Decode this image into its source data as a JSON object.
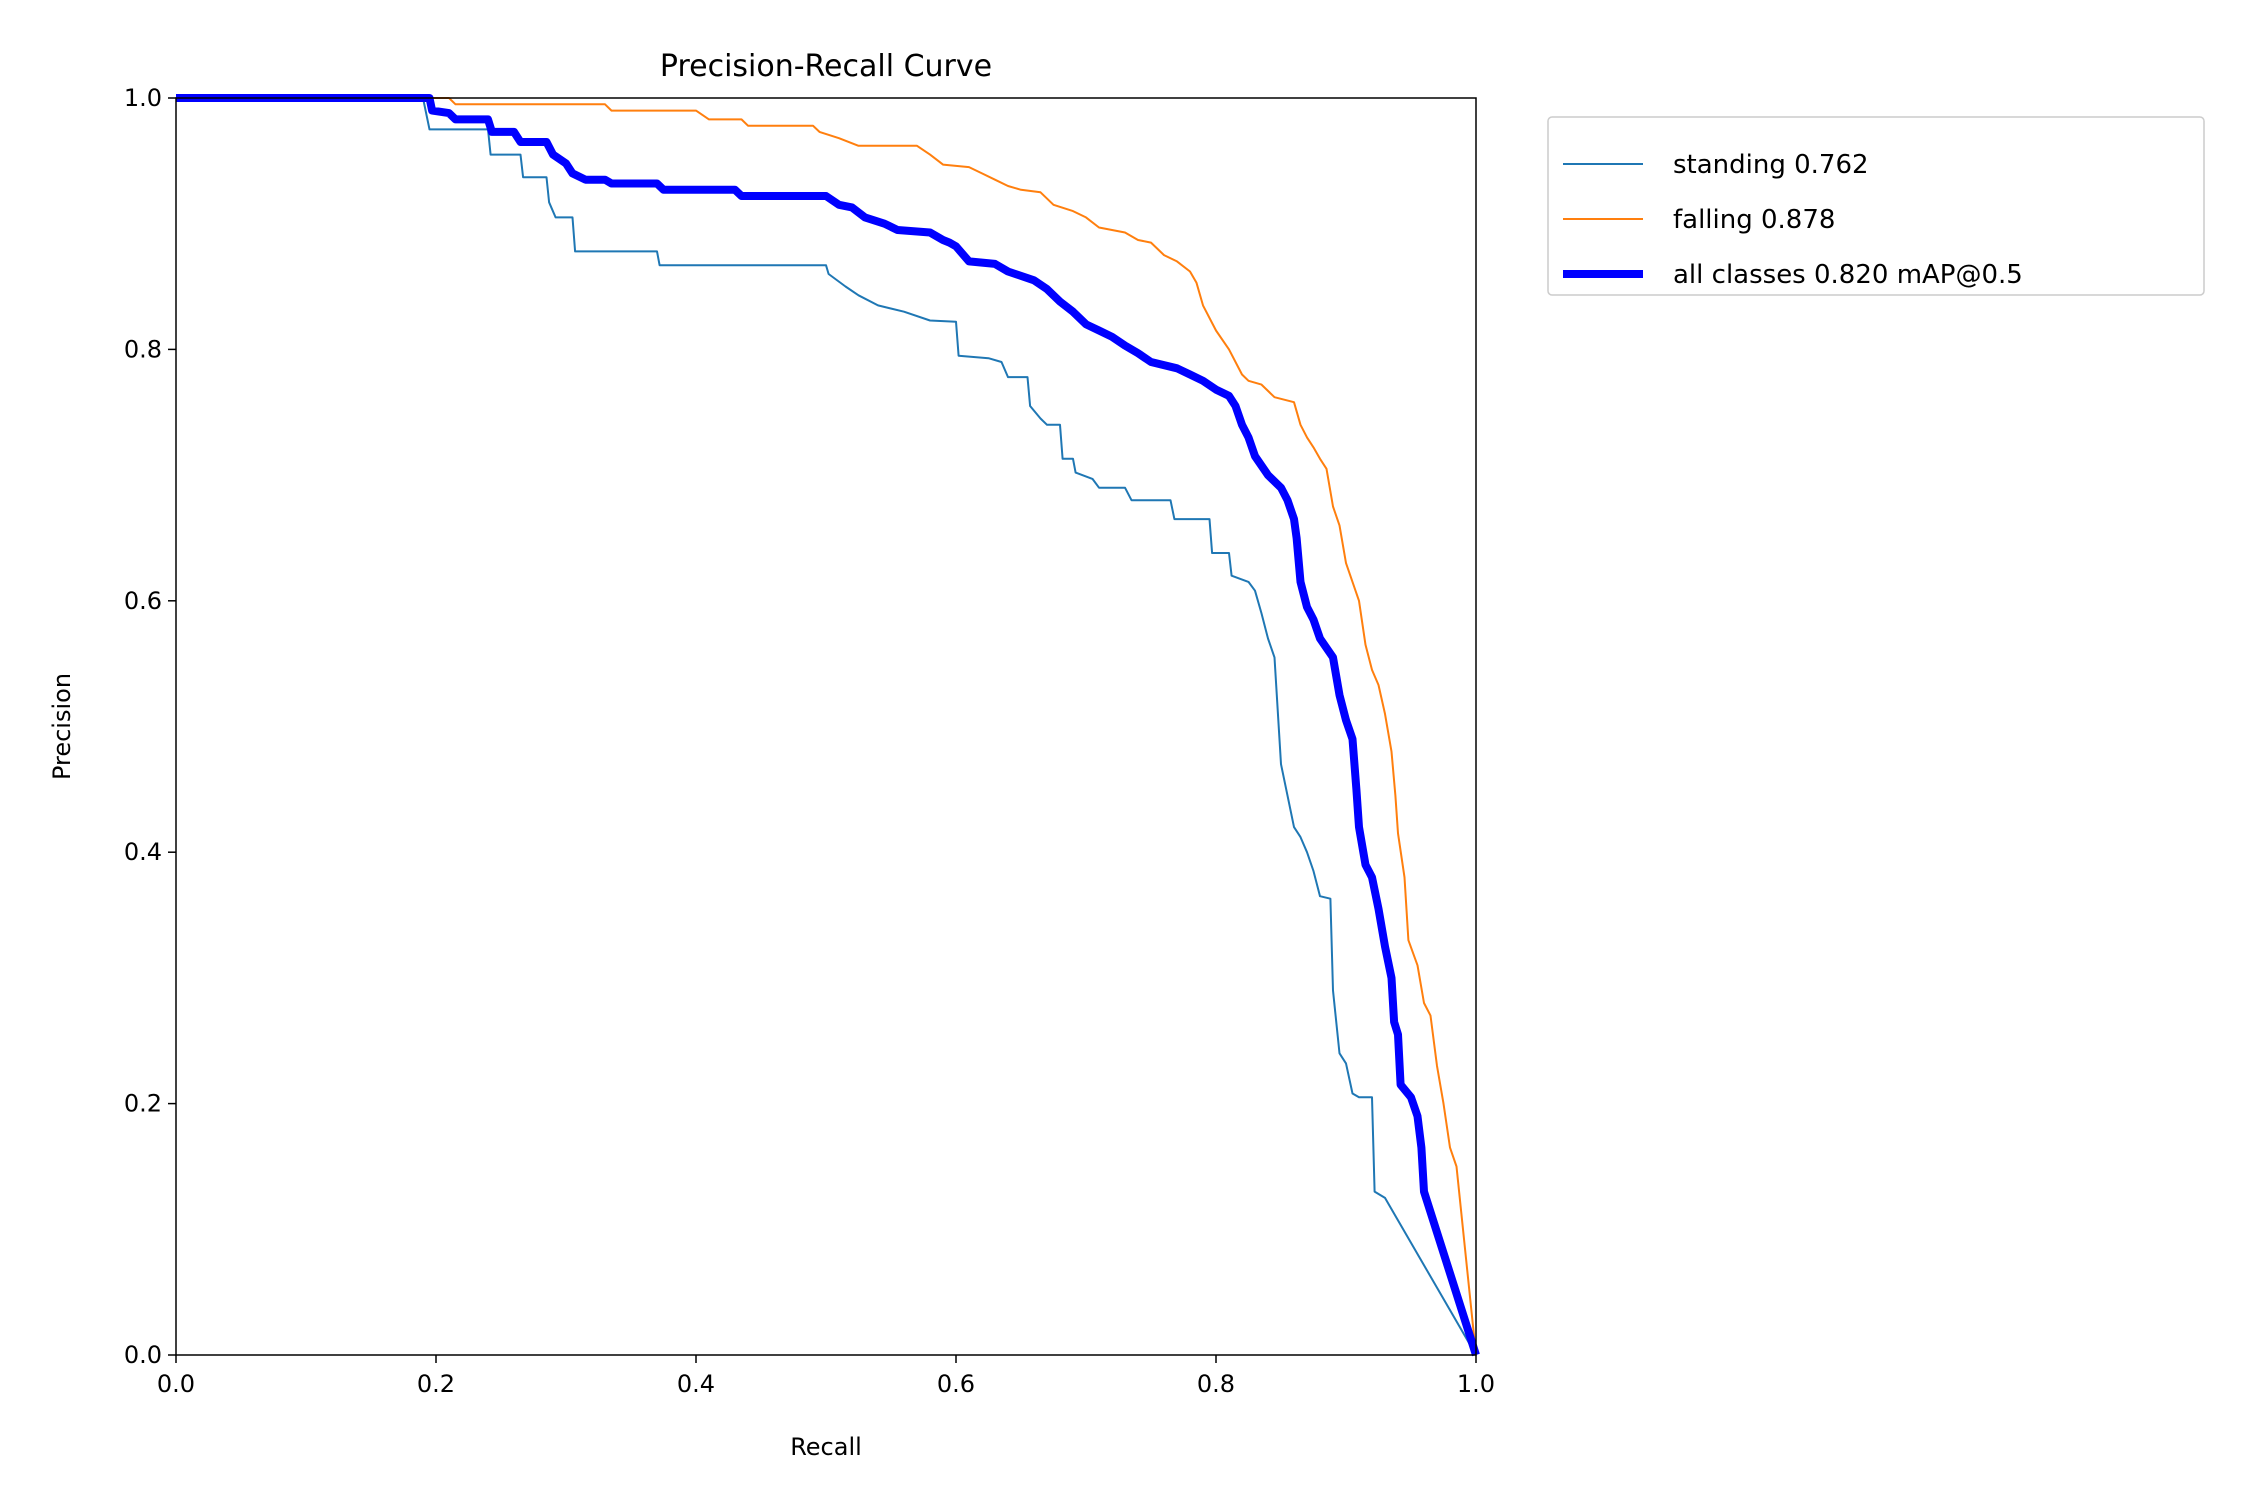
{
  "chart_data": {
    "type": "line",
    "title": "Precision-Recall Curve",
    "xlabel": "Recall",
    "ylabel": "Precision",
    "xlim": [
      0,
      1
    ],
    "ylim": [
      0,
      1
    ],
    "xticks": [
      "0.0",
      "0.2",
      "0.4",
      "0.6",
      "0.8",
      "1.0"
    ],
    "yticks": [
      "0.0",
      "0.2",
      "0.4",
      "0.6",
      "0.8",
      "1.0"
    ],
    "grid": false,
    "legend_position": "outside-top-right",
    "series": [
      {
        "name": "standing 0.762",
        "color": "#1f77b4",
        "emphasis": "thin",
        "points": [
          [
            0.0,
            1.0
          ],
          [
            0.19,
            1.0
          ],
          [
            0.195,
            0.975
          ],
          [
            0.24,
            0.975
          ],
          [
            0.242,
            0.955
          ],
          [
            0.265,
            0.955
          ],
          [
            0.267,
            0.937
          ],
          [
            0.285,
            0.937
          ],
          [
            0.287,
            0.917
          ],
          [
            0.292,
            0.905
          ],
          [
            0.305,
            0.905
          ],
          [
            0.307,
            0.878
          ],
          [
            0.37,
            0.878
          ],
          [
            0.372,
            0.867
          ],
          [
            0.5,
            0.867
          ],
          [
            0.502,
            0.86
          ],
          [
            0.515,
            0.85
          ],
          [
            0.525,
            0.843
          ],
          [
            0.54,
            0.835
          ],
          [
            0.56,
            0.83
          ],
          [
            0.58,
            0.823
          ],
          [
            0.6,
            0.822
          ],
          [
            0.602,
            0.795
          ],
          [
            0.625,
            0.793
          ],
          [
            0.635,
            0.79
          ],
          [
            0.64,
            0.778
          ],
          [
            0.655,
            0.778
          ],
          [
            0.657,
            0.755
          ],
          [
            0.665,
            0.745
          ],
          [
            0.67,
            0.74
          ],
          [
            0.68,
            0.74
          ],
          [
            0.682,
            0.713
          ],
          [
            0.69,
            0.713
          ],
          [
            0.692,
            0.702
          ],
          [
            0.705,
            0.697
          ],
          [
            0.71,
            0.69
          ],
          [
            0.73,
            0.69
          ],
          [
            0.735,
            0.68
          ],
          [
            0.765,
            0.68
          ],
          [
            0.768,
            0.665
          ],
          [
            0.795,
            0.665
          ],
          [
            0.797,
            0.638
          ],
          [
            0.81,
            0.638
          ],
          [
            0.812,
            0.62
          ],
          [
            0.825,
            0.615
          ],
          [
            0.83,
            0.608
          ],
          [
            0.835,
            0.59
          ],
          [
            0.84,
            0.57
          ],
          [
            0.845,
            0.555
          ],
          [
            0.85,
            0.47
          ],
          [
            0.855,
            0.445
          ],
          [
            0.86,
            0.42
          ],
          [
            0.865,
            0.412
          ],
          [
            0.87,
            0.4
          ],
          [
            0.875,
            0.385
          ],
          [
            0.88,
            0.365
          ],
          [
            0.888,
            0.363
          ],
          [
            0.89,
            0.29
          ],
          [
            0.895,
            0.24
          ],
          [
            0.9,
            0.232
          ],
          [
            0.905,
            0.208
          ],
          [
            0.91,
            0.205
          ],
          [
            0.92,
            0.205
          ],
          [
            0.922,
            0.13
          ],
          [
            0.93,
            0.125
          ],
          [
            1.0,
            0.0
          ]
        ]
      },
      {
        "name": "falling 0.878",
        "color": "#ff7f0e",
        "emphasis": "thin",
        "points": [
          [
            0.0,
            1.0
          ],
          [
            0.21,
            1.0
          ],
          [
            0.215,
            0.995
          ],
          [
            0.33,
            0.995
          ],
          [
            0.335,
            0.99
          ],
          [
            0.4,
            0.99
          ],
          [
            0.41,
            0.983
          ],
          [
            0.435,
            0.983
          ],
          [
            0.44,
            0.978
          ],
          [
            0.49,
            0.978
          ],
          [
            0.495,
            0.973
          ],
          [
            0.51,
            0.968
          ],
          [
            0.525,
            0.962
          ],
          [
            0.57,
            0.962
          ],
          [
            0.58,
            0.955
          ],
          [
            0.59,
            0.947
          ],
          [
            0.61,
            0.945
          ],
          [
            0.62,
            0.94
          ],
          [
            0.63,
            0.935
          ],
          [
            0.64,
            0.93
          ],
          [
            0.65,
            0.927
          ],
          [
            0.665,
            0.925
          ],
          [
            0.675,
            0.915
          ],
          [
            0.69,
            0.91
          ],
          [
            0.7,
            0.905
          ],
          [
            0.71,
            0.897
          ],
          [
            0.73,
            0.893
          ],
          [
            0.74,
            0.887
          ],
          [
            0.75,
            0.885
          ],
          [
            0.76,
            0.875
          ],
          [
            0.77,
            0.87
          ],
          [
            0.78,
            0.862
          ],
          [
            0.785,
            0.853
          ],
          [
            0.79,
            0.835
          ],
          [
            0.8,
            0.815
          ],
          [
            0.81,
            0.8
          ],
          [
            0.82,
            0.78
          ],
          [
            0.825,
            0.775
          ],
          [
            0.835,
            0.772
          ],
          [
            0.845,
            0.762
          ],
          [
            0.86,
            0.758
          ],
          [
            0.865,
            0.74
          ],
          [
            0.87,
            0.73
          ],
          [
            0.875,
            0.722
          ],
          [
            0.88,
            0.713
          ],
          [
            0.885,
            0.705
          ],
          [
            0.89,
            0.675
          ],
          [
            0.895,
            0.66
          ],
          [
            0.9,
            0.63
          ],
          [
            0.905,
            0.615
          ],
          [
            0.91,
            0.6
          ],
          [
            0.915,
            0.565
          ],
          [
            0.92,
            0.545
          ],
          [
            0.925,
            0.533
          ],
          [
            0.93,
            0.51
          ],
          [
            0.935,
            0.48
          ],
          [
            0.938,
            0.445
          ],
          [
            0.94,
            0.415
          ],
          [
            0.945,
            0.38
          ],
          [
            0.948,
            0.33
          ],
          [
            0.955,
            0.31
          ],
          [
            0.96,
            0.28
          ],
          [
            0.965,
            0.27
          ],
          [
            0.97,
            0.23
          ],
          [
            0.975,
            0.2
          ],
          [
            0.98,
            0.165
          ],
          [
            0.985,
            0.15
          ],
          [
            1.0,
            0.0
          ]
        ]
      },
      {
        "name": "all classes 0.820 mAP@0.5",
        "color": "#0000ff",
        "emphasis": "thick",
        "points": [
          [
            0.0,
            1.0
          ],
          [
            0.195,
            1.0
          ],
          [
            0.197,
            0.99
          ],
          [
            0.21,
            0.988
          ],
          [
            0.215,
            0.983
          ],
          [
            0.24,
            0.983
          ],
          [
            0.243,
            0.973
          ],
          [
            0.26,
            0.973
          ],
          [
            0.265,
            0.965
          ],
          [
            0.285,
            0.965
          ],
          [
            0.29,
            0.955
          ],
          [
            0.3,
            0.948
          ],
          [
            0.305,
            0.94
          ],
          [
            0.315,
            0.935
          ],
          [
            0.33,
            0.935
          ],
          [
            0.335,
            0.932
          ],
          [
            0.37,
            0.932
          ],
          [
            0.375,
            0.927
          ],
          [
            0.43,
            0.927
          ],
          [
            0.435,
            0.922
          ],
          [
            0.5,
            0.922
          ],
          [
            0.51,
            0.915
          ],
          [
            0.52,
            0.913
          ],
          [
            0.53,
            0.905
          ],
          [
            0.545,
            0.9
          ],
          [
            0.555,
            0.895
          ],
          [
            0.58,
            0.893
          ],
          [
            0.59,
            0.887
          ],
          [
            0.595,
            0.885
          ],
          [
            0.6,
            0.882
          ],
          [
            0.61,
            0.87
          ],
          [
            0.63,
            0.868
          ],
          [
            0.64,
            0.862
          ],
          [
            0.66,
            0.855
          ],
          [
            0.67,
            0.848
          ],
          [
            0.68,
            0.838
          ],
          [
            0.69,
            0.83
          ],
          [
            0.7,
            0.82
          ],
          [
            0.71,
            0.815
          ],
          [
            0.72,
            0.81
          ],
          [
            0.73,
            0.803
          ],
          [
            0.74,
            0.797
          ],
          [
            0.75,
            0.79
          ],
          [
            0.77,
            0.785
          ],
          [
            0.78,
            0.78
          ],
          [
            0.79,
            0.775
          ],
          [
            0.8,
            0.768
          ],
          [
            0.81,
            0.763
          ],
          [
            0.815,
            0.755
          ],
          [
            0.82,
            0.74
          ],
          [
            0.825,
            0.73
          ],
          [
            0.83,
            0.715
          ],
          [
            0.84,
            0.7
          ],
          [
            0.85,
            0.69
          ],
          [
            0.855,
            0.68
          ],
          [
            0.86,
            0.665
          ],
          [
            0.862,
            0.65
          ],
          [
            0.865,
            0.615
          ],
          [
            0.87,
            0.595
          ],
          [
            0.875,
            0.585
          ],
          [
            0.88,
            0.57
          ],
          [
            0.89,
            0.555
          ],
          [
            0.895,
            0.525
          ],
          [
            0.9,
            0.505
          ],
          [
            0.905,
            0.49
          ],
          [
            0.908,
            0.45
          ],
          [
            0.91,
            0.42
          ],
          [
            0.915,
            0.39
          ],
          [
            0.92,
            0.38
          ],
          [
            0.925,
            0.355
          ],
          [
            0.93,
            0.325
          ],
          [
            0.935,
            0.3
          ],
          [
            0.937,
            0.265
          ],
          [
            0.94,
            0.255
          ],
          [
            0.942,
            0.215
          ],
          [
            0.95,
            0.205
          ],
          [
            0.955,
            0.19
          ],
          [
            0.958,
            0.165
          ],
          [
            0.96,
            0.13
          ],
          [
            1.0,
            0.0
          ]
        ]
      }
    ]
  }
}
